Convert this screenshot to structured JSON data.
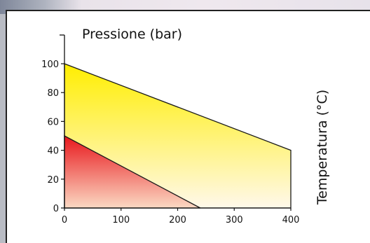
{
  "chart_data": {
    "type": "area",
    "ylabel": "Pressione (bar)",
    "right_label": "Temperatura (°C)",
    "xlim": [
      0,
      400
    ],
    "ylim": [
      0,
      100
    ],
    "xticks": [
      0,
      100,
      200,
      300,
      400
    ],
    "yticks": [
      0,
      20,
      40,
      60,
      80,
      100
    ],
    "grid": false,
    "series": [
      {
        "color_top": "#ffee00",
        "color_bottom": "#fff8ea",
        "points": [
          [
            0,
            0
          ],
          [
            0,
            100
          ],
          [
            400,
            40
          ],
          [
            400,
            0
          ]
        ]
      },
      {
        "color_top": "#e8171c",
        "color_bottom": "#fbd9c3",
        "points": [
          [
            0,
            0
          ],
          [
            0,
            50
          ],
          [
            240,
            0
          ]
        ]
      }
    ]
  }
}
